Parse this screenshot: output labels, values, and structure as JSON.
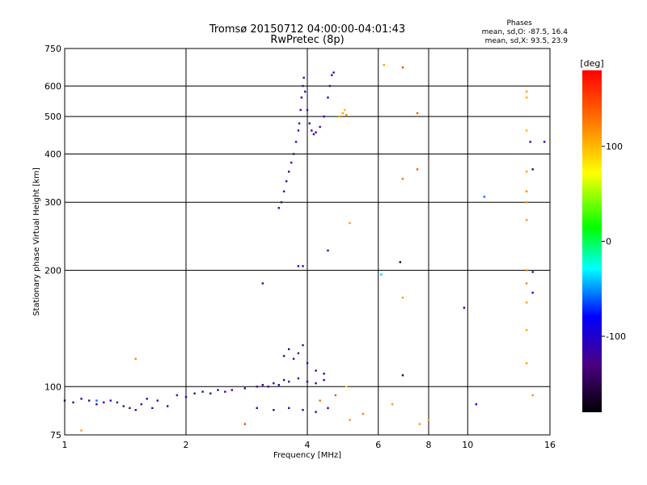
{
  "chart_data": {
    "type": "scatter",
    "title": "Tromsø 20150712 04:00:00-04:01:43",
    "subtitle": "RwPretec (8p)",
    "xlabel": "Frequency [MHz]",
    "ylabel": "Stationary phase Virtual Height [km]",
    "x_scale": "log",
    "y_scale": "log",
    "xlim": [
      1,
      16
    ],
    "ylim": [
      75,
      750
    ],
    "x_ticks": [
      1,
      2,
      4,
      6,
      8,
      10,
      16
    ],
    "x_tick_labels": [
      "1",
      "2",
      "4",
      "6",
      "8",
      "10",
      "16"
    ],
    "y_ticks": [
      75,
      100,
      200,
      300,
      400,
      500,
      600,
      750
    ],
    "y_tick_labels": [
      "75",
      "100",
      "200",
      "300",
      "400",
      "500",
      "600",
      "750"
    ],
    "grid": true,
    "phases_box": {
      "title": "Phases",
      "line1": "mean, sd,O: -87.5, 16.4",
      "line2": "mean, sd,X:  93.5, 23.9"
    },
    "colorbar": {
      "label": "[deg]",
      "range": [
        -180,
        180
      ],
      "ticks": [
        100,
        0,
        -100
      ],
      "tick_labels": [
        "100",
        "0",
        "-100"
      ]
    },
    "series": [
      {
        "name": "O",
        "points": [
          [
            1.0,
            92,
            -120
          ],
          [
            1.05,
            91,
            -125
          ],
          [
            1.1,
            93,
            -118
          ],
          [
            1.15,
            92,
            -122
          ],
          [
            1.2,
            90,
            -128
          ],
          [
            1.25,
            91,
            -120
          ],
          [
            1.3,
            92,
            -115
          ],
          [
            1.35,
            91,
            -122
          ],
          [
            1.4,
            89,
            -118
          ],
          [
            1.45,
            88,
            -126
          ],
          [
            1.5,
            87,
            -120
          ],
          [
            1.55,
            90,
            -110
          ],
          [
            1.6,
            93,
            -124
          ],
          [
            1.65,
            88,
            -119
          ],
          [
            1.7,
            92,
            -121
          ],
          [
            1.8,
            89,
            -127
          ],
          [
            1.9,
            95,
            -120
          ],
          [
            2.0,
            94,
            -118
          ],
          [
            2.1,
            96,
            -123
          ],
          [
            2.2,
            97,
            -119
          ],
          [
            2.3,
            96,
            -125
          ],
          [
            2.4,
            98,
            -117
          ],
          [
            2.5,
            97,
            -121
          ],
          [
            2.6,
            98,
            -126
          ],
          [
            2.8,
            99,
            -120
          ],
          [
            3.0,
            100,
            -124
          ],
          [
            3.1,
            101,
            -119
          ],
          [
            3.2,
            100,
            -125
          ],
          [
            3.3,
            102,
            -120
          ],
          [
            3.4,
            101,
            -123
          ],
          [
            3.5,
            104,
            -118
          ],
          [
            3.6,
            103,
            -122
          ],
          [
            3.8,
            105,
            -127
          ],
          [
            4.0,
            103,
            -120
          ],
          [
            4.2,
            102,
            -124
          ],
          [
            4.4,
            104,
            -119
          ],
          [
            3.4,
            290,
            -125
          ],
          [
            3.45,
            300,
            -124
          ],
          [
            3.5,
            320,
            -123
          ],
          [
            3.55,
            340,
            -122
          ],
          [
            3.6,
            360,
            -121
          ],
          [
            3.65,
            380,
            -120
          ],
          [
            3.7,
            400,
            -122
          ],
          [
            3.75,
            430,
            -123
          ],
          [
            3.8,
            460,
            -124
          ],
          [
            3.82,
            480,
            -125
          ],
          [
            3.85,
            520,
            -126
          ],
          [
            3.87,
            560,
            -125
          ],
          [
            3.9,
            600,
            -124
          ],
          [
            3.92,
            630,
            -123
          ],
          [
            3.95,
            580,
            -122
          ],
          [
            4.0,
            520,
            -121
          ],
          [
            4.05,
            480,
            -122
          ],
          [
            4.1,
            460,
            -123
          ],
          [
            4.15,
            450,
            -124
          ],
          [
            4.2,
            455,
            -125
          ],
          [
            4.3,
            470,
            -124
          ],
          [
            4.4,
            500,
            -123
          ],
          [
            4.5,
            560,
            -122
          ],
          [
            4.55,
            600,
            -121
          ],
          [
            4.6,
            640,
            -120
          ],
          [
            4.65,
            650,
            -121
          ],
          [
            3.8,
            205,
            -126
          ],
          [
            4.5,
            225,
            -124
          ],
          [
            3.5,
            120,
            -122
          ],
          [
            3.6,
            125,
            -123
          ],
          [
            3.7,
            118,
            -124
          ],
          [
            3.8,
            122,
            -125
          ],
          [
            3.9,
            128,
            -122
          ],
          [
            4.0,
            115,
            -121
          ],
          [
            4.2,
            110,
            -123
          ],
          [
            4.4,
            108,
            -124
          ],
          [
            3.0,
            88,
            -126
          ],
          [
            3.3,
            87,
            -125
          ],
          [
            3.6,
            88,
            -124
          ],
          [
            3.9,
            87,
            -123
          ],
          [
            4.2,
            86,
            -122
          ],
          [
            4.5,
            88,
            -121
          ],
          [
            3.1,
            185,
            -125
          ],
          [
            3.9,
            205,
            -124
          ]
        ]
      },
      {
        "name": "X",
        "points": [
          [
            1.2,
            92,
            -60
          ],
          [
            1.5,
            118,
            120
          ],
          [
            1.1,
            77,
            110
          ],
          [
            2.8,
            80,
            150
          ],
          [
            4.9,
            510,
            110
          ],
          [
            4.8,
            500,
            105
          ],
          [
            5.0,
            505,
            115
          ],
          [
            4.95,
            520,
            100
          ],
          [
            5.1,
            265,
            110
          ],
          [
            6.2,
            680,
            110
          ],
          [
            6.9,
            670,
            150
          ],
          [
            7.5,
            510,
            140
          ],
          [
            7.5,
            365,
            140
          ],
          [
            6.9,
            345,
            130
          ],
          [
            6.9,
            170,
            110
          ],
          [
            7.6,
            80,
            110
          ],
          [
            8.0,
            82,
            105
          ],
          [
            5.5,
            85,
            120
          ],
          [
            5.1,
            82,
            115
          ],
          [
            6.5,
            90,
            110
          ],
          [
            14.0,
            580,
            110
          ],
          [
            14.0,
            560,
            105
          ],
          [
            14.0,
            460,
            100
          ],
          [
            14.0,
            360,
            110
          ],
          [
            14.0,
            320,
            120
          ],
          [
            14.0,
            300,
            115
          ],
          [
            14.0,
            270,
            110
          ],
          [
            14.0,
            200,
            115
          ],
          [
            14.0,
            185,
            120
          ],
          [
            14.0,
            165,
            110
          ],
          [
            14.0,
            140,
            105
          ],
          [
            14.0,
            115,
            110
          ],
          [
            14.5,
            95,
            115
          ],
          [
            15.5,
            430,
            -100
          ],
          [
            14.3,
            430,
            -120
          ],
          [
            14.5,
            365,
            -150
          ],
          [
            14.5,
            198,
            -120
          ],
          [
            14.5,
            175,
            -100
          ],
          [
            11.0,
            310,
            -60
          ],
          [
            10.5,
            90,
            -80
          ],
          [
            9.8,
            160,
            -100
          ],
          [
            6.1,
            195,
            -40
          ],
          [
            6.8,
            210,
            -150
          ],
          [
            6.9,
            107,
            -160
          ],
          [
            5.0,
            100,
            80
          ],
          [
            4.7,
            95,
            140
          ],
          [
            4.3,
            92,
            130
          ]
        ]
      }
    ]
  }
}
